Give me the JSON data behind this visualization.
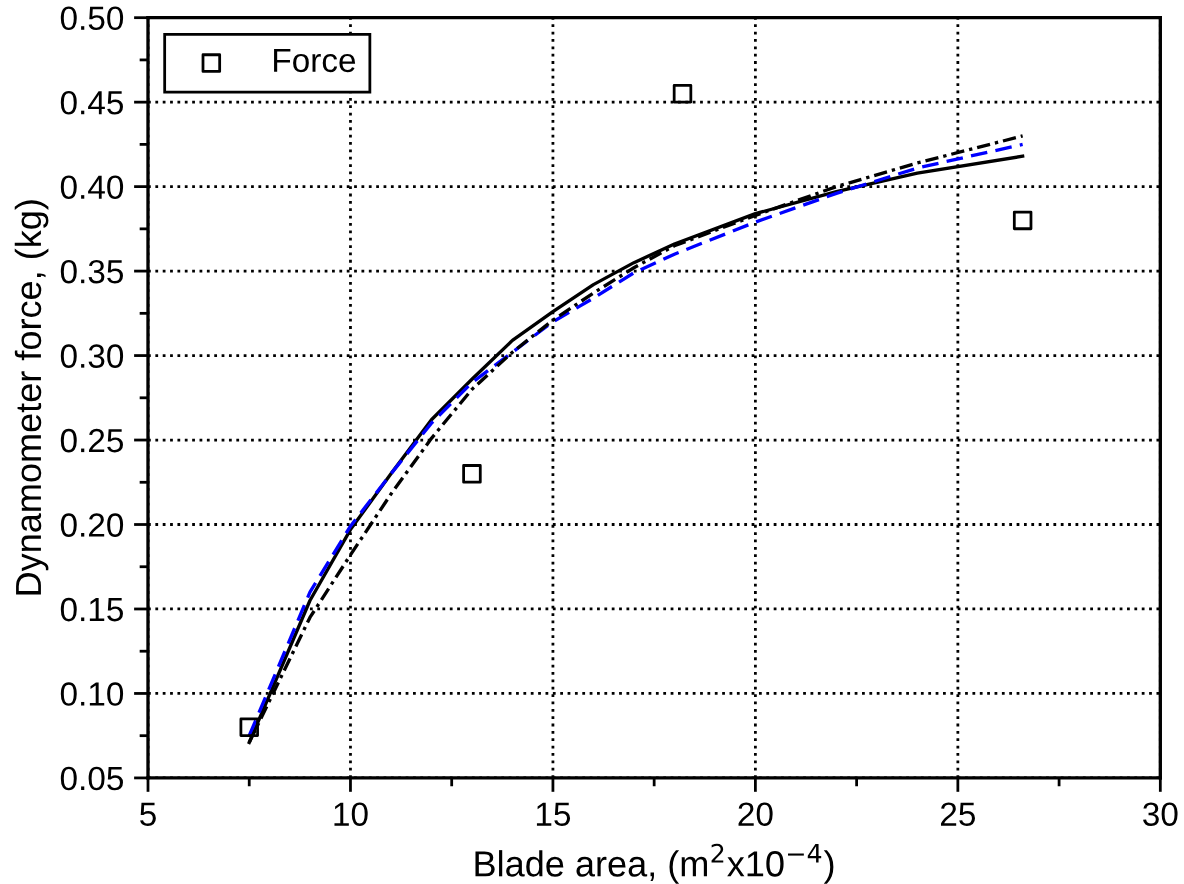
{
  "chart_data": {
    "type": "scatter",
    "xlabel": "Blade area, (m$^{2}$x10$^{−4}$)",
    "ylabel": "Dynamometer force, (kg)",
    "xlim": [
      5,
      30
    ],
    "xticks": [
      5,
      10,
      15,
      20,
      25,
      30
    ],
    "ylim": [
      0.05,
      0.5
    ],
    "yticks": [
      0.05,
      {
        "value": 0.1,
        "label": "0.10"
      },
      0.15,
      {
        "value": 0.2,
        "label": "0.20"
      },
      0.25,
      {
        "value": 0.3,
        "label": "0.30"
      },
      0.35,
      {
        "value": 0.4,
        "label": "0.40"
      },
      0.45,
      {
        "value": 0.5,
        "label": "0.50"
      }
    ],
    "grid": true,
    "legend": "top left",
    "series": [
      {
        "name": "Force",
        "color": "#000000",
        "marker": "square",
        "x": [
          7.5,
          13,
          18.2,
          26.6
        ],
        "values": [
          0.08,
          0.23,
          0.455,
          0.38
        ]
      },
      {
        "type": "line",
        "color": "#000000",
        "line_style": "solid",
        "x": [
          7.5,
          9,
          10,
          11,
          12,
          13,
          14,
          15,
          16,
          17,
          18,
          20,
          22,
          24,
          26.6
        ],
        "values": [
          0.071,
          0.155,
          0.197,
          0.23,
          0.262,
          0.286,
          0.309,
          0.326,
          0.342,
          0.355,
          0.366,
          0.384,
          0.397,
          0.408,
          0.418
        ]
      },
      {
        "type": "line",
        "color": "#0000ff",
        "line_style": "dashed",
        "x": [
          7.5,
          9,
          10,
          11,
          12,
          13,
          14,
          15,
          16,
          17,
          18,
          20,
          22,
          24,
          26.6
        ],
        "values": [
          0.075,
          0.16,
          0.199,
          0.23,
          0.26,
          0.284,
          0.302,
          0.32,
          0.334,
          0.349,
          0.36,
          0.379,
          0.396,
          0.411,
          0.425
        ]
      },
      {
        "type": "line",
        "color": "#000000",
        "line_style": "dashdot",
        "x": [
          7.5,
          9,
          10,
          11,
          12,
          13,
          14,
          15,
          16,
          17,
          18,
          20,
          22,
          24,
          26.6
        ],
        "values": [
          0.071,
          0.145,
          0.182,
          0.218,
          0.251,
          0.28,
          0.302,
          0.321,
          0.337,
          0.352,
          0.365,
          0.383,
          0.4,
          0.414,
          0.43
        ]
      }
    ]
  }
}
